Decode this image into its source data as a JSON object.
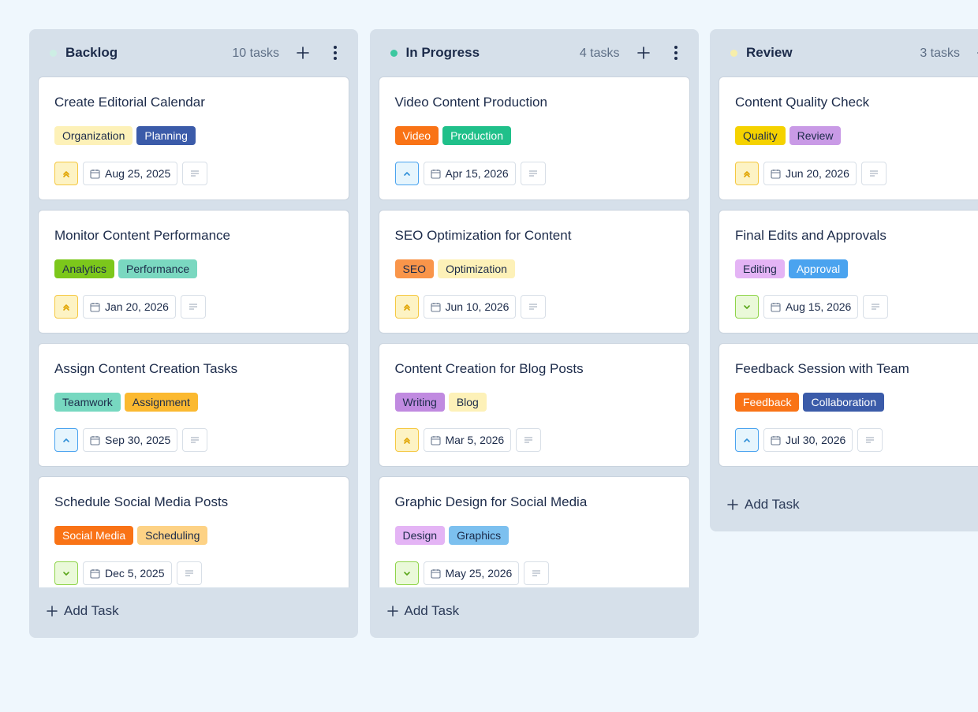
{
  "board": {
    "columns": [
      {
        "name": "Backlog",
        "dot_color": "#cdeee4",
        "count_label": "10 tasks",
        "add_label": "Add Task",
        "menu": true,
        "cards": [
          {
            "title": "Create Editorial Calendar",
            "tags": [
              {
                "label": "Organization",
                "bg": "#fdf1b8",
                "fg": "#1c2b4a"
              },
              {
                "label": "Planning",
                "bg": "#3b5ba9",
                "fg": "#ffffff"
              }
            ],
            "priority": "high",
            "date": "Aug 25, 2025"
          },
          {
            "title": "Monitor Content Performance",
            "tags": [
              {
                "label": "Analytics",
                "bg": "#7cc71b",
                "fg": "#1c2b4a"
              },
              {
                "label": "Performance",
                "bg": "#7ad8c0",
                "fg": "#1c2b4a"
              }
            ],
            "priority": "high",
            "date": "Jan 20, 2026"
          },
          {
            "title": "Assign Content Creation Tasks",
            "tags": [
              {
                "label": "Teamwork",
                "bg": "#77d8c0",
                "fg": "#1c2b4a"
              },
              {
                "label": "Assignment",
                "bg": "#fbb930",
                "fg": "#1c2b4a"
              }
            ],
            "priority": "medium",
            "date": "Sep 30, 2025"
          },
          {
            "title": "Schedule Social Media Posts",
            "tags": [
              {
                "label": "Social Media",
                "bg": "#f97316",
                "fg": "#ffffff"
              },
              {
                "label": "Scheduling",
                "bg": "#fdd285",
                "fg": "#1c2b4a"
              }
            ],
            "priority": "low",
            "date": "Dec 5, 2025"
          }
        ]
      },
      {
        "name": "In Progress",
        "dot_color": "#3cc8a0",
        "count_label": "4 tasks",
        "add_label": "Add Task",
        "menu": true,
        "cards": [
          {
            "title": "Video Content Production",
            "tags": [
              {
                "label": "Video",
                "bg": "#f97316",
                "fg": "#ffffff"
              },
              {
                "label": "Production",
                "bg": "#20c08a",
                "fg": "#ffffff"
              }
            ],
            "priority": "medium",
            "date": "Apr 15, 2026"
          },
          {
            "title": "SEO Optimization for Content",
            "tags": [
              {
                "label": "SEO",
                "bg": "#f9954a",
                "fg": "#1c2b4a"
              },
              {
                "label": "Optimization",
                "bg": "#fdf1b8",
                "fg": "#1c2b4a"
              }
            ],
            "priority": "high",
            "date": "Jun 10, 2026"
          },
          {
            "title": "Content Creation for Blog Posts",
            "tags": [
              {
                "label": "Writing",
                "bg": "#c08ae0",
                "fg": "#1c2b4a"
              },
              {
                "label": "Blog",
                "bg": "#fdf1b8",
                "fg": "#1c2b4a"
              }
            ],
            "priority": "high",
            "date": "Mar 5, 2026"
          },
          {
            "title": "Graphic Design for Social Media",
            "tags": [
              {
                "label": "Design",
                "bg": "#e4b4f5",
                "fg": "#1c2b4a"
              },
              {
                "label": "Graphics",
                "bg": "#7cc0ef",
                "fg": "#1c2b4a"
              }
            ],
            "priority": "low",
            "date": "May 25, 2026"
          }
        ]
      },
      {
        "name": "Review",
        "dot_color": "#f7eeaa",
        "count_label": "3 tasks",
        "add_label": "Add Task",
        "menu": true,
        "cards": [
          {
            "title": "Content Quality Check",
            "tags": [
              {
                "label": "Quality",
                "bg": "#f5d200",
                "fg": "#1c2b4a"
              },
              {
                "label": "Review",
                "bg": "#c99ae6",
                "fg": "#1c2b4a"
              }
            ],
            "priority": "high",
            "date": "Jun 20, 2026"
          },
          {
            "title": "Final Edits and Approvals",
            "tags": [
              {
                "label": "Editing",
                "bg": "#e4b4f5",
                "fg": "#1c2b4a"
              },
              {
                "label": "Approval",
                "bg": "#4aa3ef",
                "fg": "#ffffff"
              }
            ],
            "priority": "low",
            "date": "Aug 15, 2026"
          },
          {
            "title": "Feedback Session with Team",
            "tags": [
              {
                "label": "Feedback",
                "bg": "#f97316",
                "fg": "#ffffff"
              },
              {
                "label": "Collaboration",
                "bg": "#3b5ba9",
                "fg": "#ffffff"
              }
            ],
            "priority": "medium",
            "date": "Jul 30, 2026"
          }
        ]
      }
    ]
  }
}
